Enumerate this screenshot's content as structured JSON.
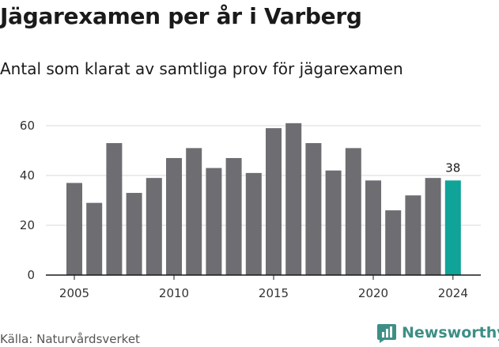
{
  "header": {
    "title": "Jägarexamen per år i Varberg",
    "subtitle": "Antal som klarat av samtliga prov för jägarexamen"
  },
  "footer": {
    "source": "Källa: Naturvårdsverket",
    "brand": "Newsworthy"
  },
  "chart_data": {
    "type": "bar",
    "categories": [
      "2005",
      "2006",
      "2007",
      "2008",
      "2009",
      "2010",
      "2011",
      "2012",
      "2013",
      "2014",
      "2015",
      "2016",
      "2017",
      "2018",
      "2019",
      "2020",
      "2021",
      "2022",
      "2023",
      "2024"
    ],
    "values": [
      37,
      29,
      53,
      33,
      39,
      47,
      51,
      43,
      47,
      41,
      59,
      61,
      53,
      42,
      51,
      38,
      26,
      32,
      39,
      38
    ],
    "x_tick_labels": [
      "2005",
      "2010",
      "2015",
      "2020",
      "2024"
    ],
    "y_ticks": [
      0,
      20,
      40,
      60
    ],
    "ylim": [
      0,
      65
    ],
    "grid": true,
    "colors": {
      "default": "#6d6d72",
      "highlight": "#10a398"
    },
    "highlight_category": "2024",
    "data_labels": [
      {
        "category": "2024",
        "text": "38"
      }
    ]
  }
}
